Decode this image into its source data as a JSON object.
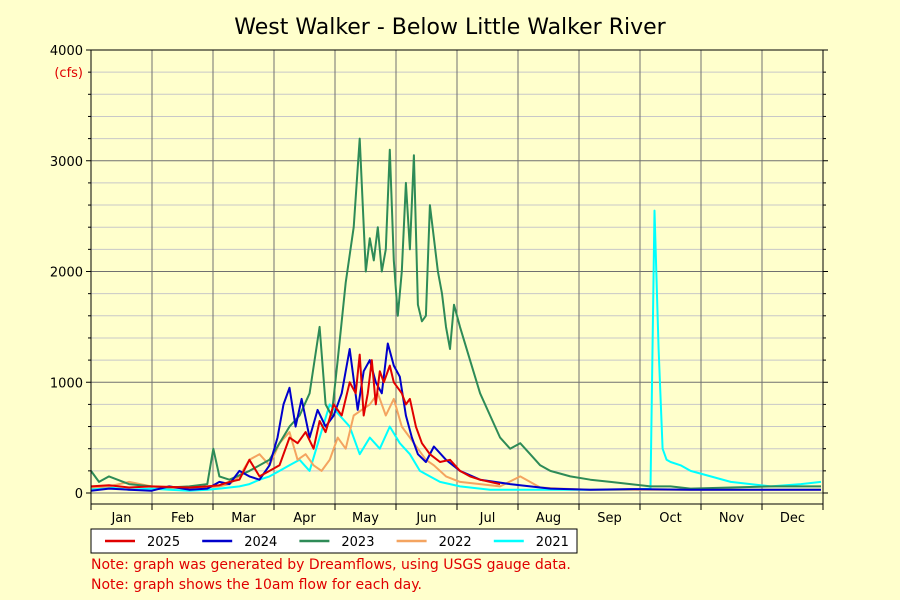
{
  "chart_data": {
    "type": "line",
    "title": "West Walker - Below Little Walker River",
    "ylabel": "(cfs)",
    "ylim": [
      0,
      4000
    ],
    "yticks": [
      0,
      1000,
      2000,
      3000,
      4000
    ],
    "months": [
      "Jan",
      "Feb",
      "Mar",
      "Apr",
      "May",
      "Jun",
      "Jul",
      "Aug",
      "Sep",
      "Oct",
      "Nov",
      "Dec"
    ],
    "legend_position": "bottom",
    "grid": true,
    "x_unit": "day of year",
    "series": [
      {
        "name": "2025",
        "color": "#e00000",
        "x": [
          1,
          10,
          20,
          31,
          40,
          50,
          59,
          65,
          70,
          75,
          80,
          85,
          90,
          95,
          100,
          104,
          108,
          112,
          115,
          118,
          122,
          126,
          130,
          133,
          135,
          137,
          139,
          141,
          143,
          145,
          147,
          150,
          152,
          154,
          156,
          158,
          160,
          163,
          166,
          170,
          175,
          180,
          185,
          190,
          195,
          200,
          205
        ],
        "y": [
          60,
          70,
          50,
          60,
          55,
          50,
          60,
          70,
          100,
          120,
          300,
          150,
          200,
          250,
          500,
          450,
          550,
          400,
          650,
          550,
          800,
          700,
          1000,
          900,
          1250,
          700,
          900,
          1200,
          800,
          1100,
          1000,
          1150,
          1000,
          950,
          900,
          800,
          850,
          600,
          450,
          350,
          280,
          300,
          200,
          150,
          120,
          100,
          80
        ]
      },
      {
        "name": "2024",
        "color": "#0000cc",
        "x": [
          1,
          10,
          20,
          31,
          40,
          50,
          59,
          65,
          70,
          75,
          80,
          85,
          90,
          94,
          97,
          100,
          103,
          106,
          110,
          114,
          118,
          122,
          126,
          130,
          134,
          137,
          140,
          143,
          146,
          149,
          152,
          155,
          158,
          161,
          164,
          168,
          172,
          178,
          185,
          195,
          210,
          230,
          250,
          270,
          300,
          330,
          365
        ],
        "y": [
          20,
          40,
          30,
          20,
          60,
          30,
          40,
          100,
          80,
          200,
          150,
          120,
          250,
          500,
          800,
          950,
          600,
          850,
          500,
          750,
          600,
          700,
          900,
          1300,
          750,
          1100,
          1200,
          1000,
          900,
          1350,
          1150,
          1050,
          700,
          500,
          350,
          280,
          420,
          300,
          200,
          120,
          80,
          40,
          30,
          35,
          30,
          30,
          30
        ]
      },
      {
        "name": "2023",
        "color": "#2e8b57",
        "x": [
          1,
          5,
          10,
          20,
          31,
          40,
          50,
          59,
          62,
          65,
          70,
          80,
          90,
          100,
          105,
          110,
          115,
          118,
          121,
          124,
          128,
          132,
          135,
          138,
          140,
          142,
          144,
          146,
          148,
          150,
          152,
          154,
          156,
          158,
          160,
          162,
          164,
          166,
          168,
          170,
          172,
          174,
          176,
          178,
          180,
          182,
          185,
          190,
          195,
          200,
          205,
          210,
          215,
          220,
          225,
          230,
          240,
          250,
          260,
          270,
          280,
          290,
          300,
          320,
          340,
          365
        ],
        "y": [
          200,
          100,
          150,
          80,
          60,
          50,
          60,
          80,
          400,
          150,
          120,
          200,
          300,
          600,
          700,
          900,
          1500,
          800,
          700,
          1200,
          1900,
          2400,
          3200,
          2000,
          2300,
          2100,
          2400,
          2000,
          2200,
          3100,
          2100,
          1600,
          2000,
          2800,
          2200,
          3050,
          1700,
          1550,
          1600,
          2600,
          2300,
          2000,
          1800,
          1500,
          1300,
          1700,
          1500,
          1200,
          900,
          700,
          500,
          400,
          450,
          350,
          250,
          200,
          150,
          120,
          100,
          80,
          60,
          60,
          40,
          50,
          60,
          60
        ]
      },
      {
        "name": "2022",
        "color": "#f4a460",
        "x": [
          1,
          10,
          20,
          31,
          40,
          50,
          59,
          65,
          70,
          75,
          80,
          85,
          90,
          95,
          100,
          104,
          108,
          112,
          116,
          120,
          124,
          128,
          132,
          136,
          140,
          144,
          148,
          152,
          156,
          160,
          164,
          168,
          172,
          178,
          185,
          195,
          205,
          215,
          225,
          235,
          250,
          270,
          300,
          330,
          365
        ],
        "y": [
          50,
          60,
          100,
          60,
          50,
          40,
          50,
          60,
          80,
          150,
          300,
          350,
          250,
          450,
          550,
          300,
          350,
          250,
          200,
          300,
          500,
          400,
          700,
          750,
          800,
          900,
          700,
          850,
          600,
          500,
          400,
          300,
          250,
          150,
          100,
          80,
          60,
          150,
          50,
          40,
          30,
          30,
          30,
          30,
          30
        ]
      },
      {
        "name": "2021",
        "color": "#00ffff",
        "x": [
          1,
          10,
          20,
          31,
          40,
          50,
          59,
          65,
          70,
          75,
          80,
          85,
          90,
          95,
          100,
          105,
          110,
          115,
          120,
          125,
          130,
          135,
          140,
          145,
          150,
          155,
          160,
          165,
          170,
          175,
          185,
          200,
          220,
          250,
          270,
          280,
          282,
          284,
          286,
          288,
          290,
          295,
          300,
          310,
          320,
          340,
          355,
          365
        ],
        "y": [
          40,
          50,
          30,
          40,
          30,
          20,
          30,
          40,
          50,
          60,
          80,
          120,
          150,
          200,
          250,
          300,
          200,
          500,
          800,
          700,
          600,
          350,
          500,
          400,
          600,
          450,
          350,
          200,
          150,
          100,
          60,
          30,
          30,
          30,
          30,
          40,
          2550,
          1300,
          400,
          300,
          280,
          250,
          200,
          150,
          100,
          60,
          80,
          100
        ]
      }
    ]
  },
  "notes": {
    "line1": "Note: graph was generated by Dreamflows, using USGS gauge data.",
    "line2": "Note: graph shows the 10am flow for each day."
  }
}
